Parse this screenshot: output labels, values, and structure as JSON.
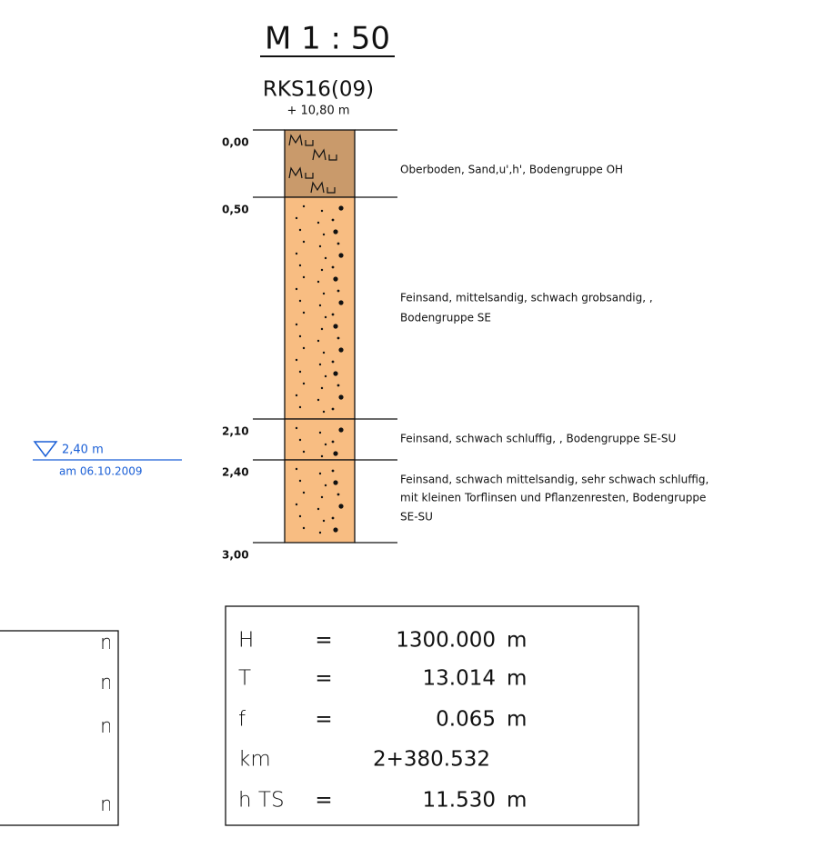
{
  "scale": "M 1 : 50",
  "profile": {
    "name": "RKS16(09)",
    "elevation": "+ 10,80 m",
    "layers": [
      {
        "top": "0,00",
        "description": [
          "Oberboden, Sand,u',h', Bodengruppe OH"
        ]
      },
      {
        "top": "0,50",
        "description": [
          "Feinsand, mittelsandig, schwach grobsandig, ,",
          "Bodengruppe SE"
        ]
      },
      {
        "top": "2,10",
        "description": [
          "Feinsand, schwach schluffig, , Bodengruppe SE-SU"
        ]
      },
      {
        "top": "2,40",
        "description": [
          "Feinsand, schwach mittelsandig, sehr schwach schluffig,",
          "mit kleinen Torflinsen und Pflanzenresten, Bodengruppe",
          "SE-SU"
        ]
      }
    ],
    "bottom": "3,00"
  },
  "groundwater": {
    "level": "2,40 m",
    "date": "am 06.10.2009"
  },
  "parameters": {
    "rows": [
      {
        "label": "H",
        "sign": "=",
        "value": "1300.000",
        "unit": "m"
      },
      {
        "label": "T",
        "sign": "=",
        "value": "13.014",
        "unit": "m"
      },
      {
        "label": "f",
        "sign": "=",
        "value": "0.065",
        "unit": "m"
      },
      {
        "label": "km",
        "value": "2+380.532"
      },
      {
        "label": "h TS",
        "sign": "=",
        "value": "11.530",
        "unit": "m"
      }
    ]
  },
  "left_box": {
    "rows": [
      "m",
      "m",
      "m",
      "m"
    ]
  }
}
